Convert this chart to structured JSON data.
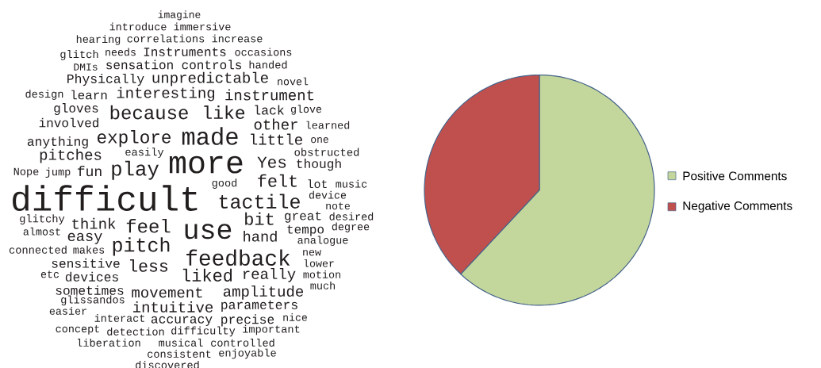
{
  "chart_data": [
    {
      "type": "other",
      "annotations": [
        "imagine",
        "introduce",
        "immersive",
        "hearing",
        "correlations",
        "increase",
        "glitch",
        "needs",
        "Instruments",
        "occasions",
        "DMIs",
        "sensation",
        "controls",
        "handed",
        "Physically",
        "unpredictable",
        "novel",
        "design",
        "learn",
        "interesting",
        "instrument",
        "gloves",
        "because",
        "like",
        "lack",
        "glove",
        "involved",
        "other",
        "learned",
        "anything",
        "explore",
        "made",
        "little",
        "one",
        "pitches",
        "easily",
        "obstructed",
        "more",
        "Yes",
        "though",
        "Nope",
        "jump",
        "fun",
        "play",
        "felt",
        "good",
        "lot",
        "music",
        "difficult",
        "tactile",
        "device",
        "note",
        "glitchy",
        "think",
        "feel",
        "bit",
        "great",
        "desired",
        "almost",
        "use",
        "hand",
        "tempo",
        "degree",
        "easy",
        "analogue",
        "connected",
        "makes",
        "pitch",
        "feedback",
        "new",
        "sensitive",
        "less",
        "lower",
        "etc",
        "devices",
        "liked",
        "really",
        "motion",
        "much",
        "sometimes",
        "movement",
        "amplitude",
        "glissandos",
        "intuitive",
        "parameters",
        "easier",
        "interact",
        "accuracy",
        "precise",
        "nice",
        "concept",
        "detection",
        "difficulty",
        "important",
        "liberation",
        "musical",
        "controlled",
        "consistent",
        "enjoyable",
        "discovered"
      ]
    },
    {
      "type": "pie",
      "categories": [
        "Positive Comments",
        "Negative Comments"
      ],
      "values": [
        62,
        38
      ],
      "colors": [
        "#c3d69b",
        "#c0504d"
      ],
      "legend": "right"
    }
  ]
}
